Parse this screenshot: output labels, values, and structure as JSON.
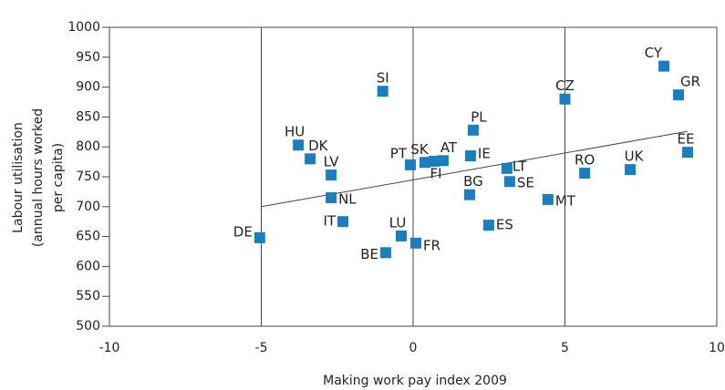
{
  "chart_data": {
    "type": "scatter",
    "xlabel": "Making work pay index 2009",
    "ylabel": [
      "Labour utilisation",
      "(annual hours worked",
      "per capita)"
    ],
    "color": "#1a7fc1",
    "xlim": [
      -10,
      10
    ],
    "xticks": [
      -10,
      -5,
      0,
      5,
      10
    ],
    "ylim": [
      500,
      1000
    ],
    "yticks": [
      500,
      550,
      600,
      650,
      700,
      750,
      800,
      850,
      900,
      950,
      1000
    ],
    "grid": true,
    "labels": [
      "CY",
      "GR",
      "CZ",
      "SI",
      "PL",
      "HU",
      "DK",
      "LV",
      "NL",
      "PT",
      "SK",
      "FI",
      "AT",
      "IE",
      "EE",
      "UK",
      "RO",
      "LT",
      "SE",
      "BG",
      "MT",
      "IT",
      "ES",
      "LU",
      "FR",
      "BE",
      "DE"
    ],
    "x": [
      8.26,
      8.74,
      5.0,
      -1.0,
      1.98,
      -3.78,
      -3.39,
      -2.7,
      -2.7,
      -0.09,
      0.39,
      0.69,
      0.99,
      1.89,
      9.04,
      7.15,
      5.65,
      3.09,
      3.18,
      1.86,
      4.44,
      -2.31,
      2.49,
      -0.39,
      0.09,
      -0.9,
      -5.05
    ],
    "y": [
      935,
      887,
      880,
      893,
      828,
      803,
      780,
      753,
      715,
      770,
      774,
      776,
      777,
      785,
      791,
      762,
      756,
      764,
      742,
      720,
      712,
      675,
      669,
      651,
      639,
      623,
      648
    ],
    "trendline": {
      "x": [
        -5,
        9.04
      ],
      "y": [
        700,
        826
      ]
    }
  }
}
